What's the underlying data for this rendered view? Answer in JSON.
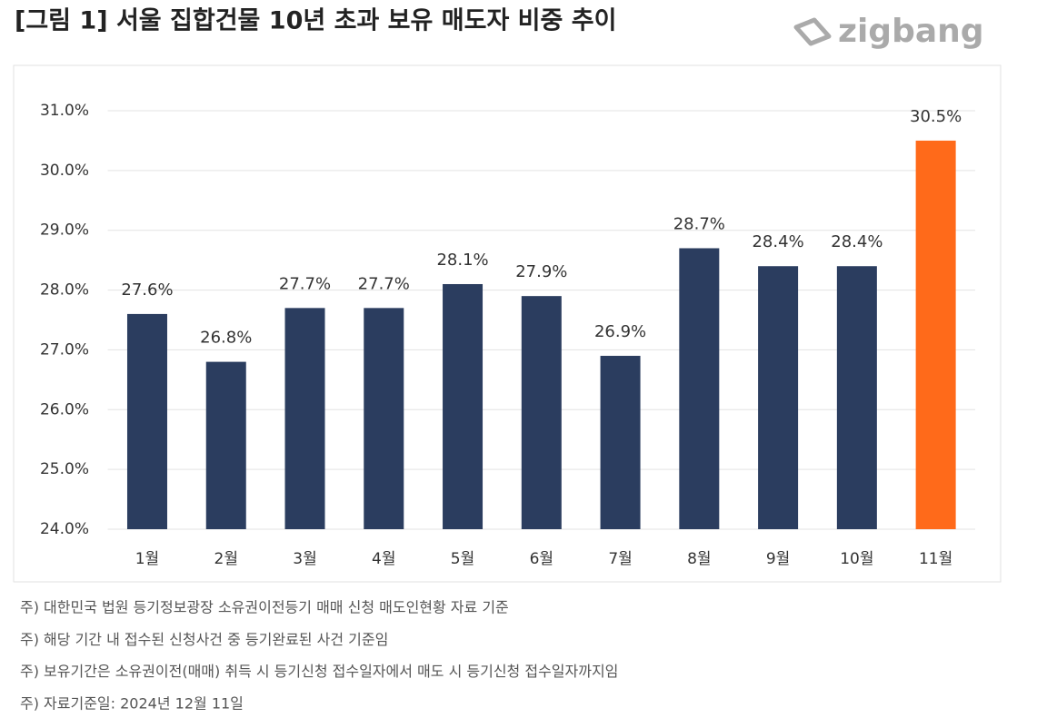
{
  "chart_data": {
    "type": "bar",
    "title": "[그림 1] 서울 집합건물 10년 초과 보유 매도자 비중 추이",
    "brand": "zigbang",
    "categories": [
      "1월",
      "2월",
      "3월",
      "4월",
      "5월",
      "6월",
      "7월",
      "8월",
      "9월",
      "10월",
      "11월"
    ],
    "values": [
      27.6,
      26.8,
      27.7,
      27.7,
      28.1,
      27.9,
      26.9,
      28.7,
      28.4,
      28.4,
      30.5
    ],
    "value_labels": [
      "27.6%",
      "26.8%",
      "27.7%",
      "27.7%",
      "28.1%",
      "27.9%",
      "26.9%",
      "28.7%",
      "28.4%",
      "28.4%",
      "30.5%"
    ],
    "colors": [
      "#2b3d5f",
      "#2b3d5f",
      "#2b3d5f",
      "#2b3d5f",
      "#2b3d5f",
      "#2b3d5f",
      "#2b3d5f",
      "#2b3d5f",
      "#2b3d5f",
      "#2b3d5f",
      "#ff6a1a"
    ],
    "ylim": [
      24,
      31
    ],
    "yticks": [
      {
        "value": 24,
        "label": "24.0%"
      },
      {
        "value": 25,
        "label": "25.0%"
      },
      {
        "value": 26,
        "label": "26.0%"
      },
      {
        "value": 27,
        "label": "27.0%"
      },
      {
        "value": 28,
        "label": "28.0%"
      },
      {
        "value": 29,
        "label": "29.0%"
      },
      {
        "value": 30,
        "label": "30.0%"
      },
      {
        "value": 31,
        "label": "31.0%"
      }
    ],
    "grid": true,
    "notes": [
      "주) 대한민국 법원 등기정보광장 소유권이전등기 매매 신청 매도인현황 자료 기준",
      "주) 해당 기간 내 접수된 신청사건 중 등기완료된 사건 기준임",
      "주) 보유기간은 소유권이전(매매) 취득 시 등기신청 접수일자에서 매도 시 등기신청 접수일자까지임",
      "주) 자료기준일: 2024년 12월 11일"
    ]
  }
}
